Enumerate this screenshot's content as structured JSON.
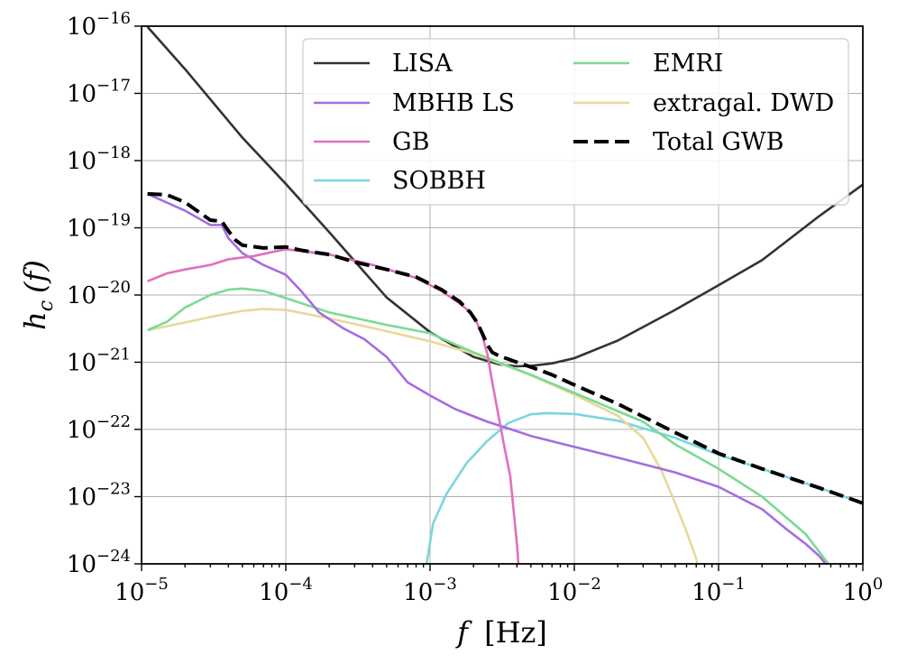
{
  "chart_data": {
    "type": "line",
    "title": "",
    "xlabel": {
      "var": "f",
      "unit": "[Hz]"
    },
    "ylabel": {
      "var": "h",
      "sub": "c",
      "arg": "(f)"
    },
    "x_scale": "log",
    "y_scale": "log",
    "xlim": [
      1e-05,
      1
    ],
    "ylim": [
      1e-24,
      1e-16
    ],
    "grid": true,
    "legend_position": "top-right",
    "x_ticks": [
      {
        "value": 1e-05,
        "base": "10",
        "exp": "−5"
      },
      {
        "value": 0.0001,
        "base": "10",
        "exp": "−4"
      },
      {
        "value": 0.001,
        "base": "10",
        "exp": "−3"
      },
      {
        "value": 0.01,
        "base": "10",
        "exp": "−2"
      },
      {
        "value": 0.1,
        "base": "10",
        "exp": "−1"
      },
      {
        "value": 1,
        "base": "10",
        "exp": "0"
      }
    ],
    "y_ticks": [
      {
        "value": 1e-24,
        "base": "10",
        "exp": "−24"
      },
      {
        "value": 1e-23,
        "base": "10",
        "exp": "−23"
      },
      {
        "value": 1e-22,
        "base": "10",
        "exp": "−22"
      },
      {
        "value": 1e-21,
        "base": "10",
        "exp": "−21"
      },
      {
        "value": 1e-20,
        "base": "10",
        "exp": "−20"
      },
      {
        "value": 1e-19,
        "base": "10",
        "exp": "−19"
      },
      {
        "value": 1e-18,
        "base": "10",
        "exp": "−18"
      },
      {
        "value": 1e-17,
        "base": "10",
        "exp": "−17"
      },
      {
        "value": 1e-16,
        "base": "10",
        "exp": "−16"
      }
    ],
    "series": [
      {
        "name": "LISA",
        "color": "#333333",
        "dash": "solid",
        "x": [
          1.1e-05,
          2e-05,
          5e-05,
          0.0001,
          0.0002,
          0.0005,
          0.001,
          0.002,
          0.003,
          0.004,
          0.005,
          0.007,
          0.01,
          0.02,
          0.05,
          0.1,
          0.2,
          0.5,
          1
        ],
        "y": [
          9.8e-17,
          2.3e-17,
          2.2e-18,
          4.5e-19,
          8.6e-20,
          9.2e-21,
          2.8e-21,
          1.2e-21,
          9.3e-22,
          8.7e-22,
          8.8e-22,
          9.6e-22,
          1.15e-21,
          2.1e-21,
          6e-21,
          1.4e-20,
          3.3e-20,
          1.5e-19,
          4.4e-19
        ]
      },
      {
        "name": "MBHB LS",
        "color": "#a56ce0",
        "dash": "solid",
        "x": [
          1.1e-05,
          2e-05,
          3e-05,
          3.6e-05,
          4e-05,
          5e-05,
          7e-05,
          0.0001,
          0.00013,
          0.00017,
          0.00025,
          0.00035,
          0.0005,
          0.0007,
          0.001,
          0.0015,
          0.0025,
          0.0035,
          0.005,
          0.01,
          0.02,
          0.05,
          0.1,
          0.2,
          0.3,
          0.4,
          0.5,
          0.6
        ],
        "y": [
          3.2e-19,
          1.8e-19,
          1.1e-19,
          1.1e-19,
          7e-20,
          4.2e-20,
          2.8e-20,
          2e-20,
          1.1e-20,
          5.5e-21,
          3.2e-21,
          2.2e-21,
          1.2e-21,
          5e-22,
          3.2e-22,
          2e-22,
          1.3e-22,
          1.03e-22,
          8e-23,
          5.5e-23,
          3.8e-23,
          2.3e-23,
          1.4e-23,
          6.5e-24,
          3.2e-24,
          2e-24,
          1.3e-24,
          8e-25
        ]
      },
      {
        "name": "GB",
        "color": "#e070c0",
        "dash": "solid",
        "x": [
          1.1e-05,
          1.5e-05,
          2e-05,
          3e-05,
          4e-05,
          6e-05,
          0.0001,
          0.0002,
          0.0004,
          0.0008,
          0.0012,
          0.0016,
          0.0019,
          0.0021,
          0.0023,
          0.0025,
          0.0027,
          0.003,
          0.0033,
          0.0036,
          0.0038,
          0.004,
          0.0042
        ],
        "y": [
          1.6e-20,
          2.1e-20,
          2.4e-20,
          2.8e-20,
          3.4e-20,
          3.8e-20,
          4.8e-20,
          4e-20,
          2.8e-20,
          1.8e-20,
          1.15e-20,
          7.5e-21,
          5.5e-21,
          4e-21,
          2.5e-21,
          1.3e-21,
          5e-22,
          1.5e-22,
          5e-23,
          2e-23,
          6e-24,
          2e-24,
          5e-25
        ]
      },
      {
        "name": "SOBBH",
        "color": "#7ad6e0",
        "dash": "solid",
        "x": [
          0.00093,
          0.00105,
          0.0013,
          0.0018,
          0.0025,
          0.0035,
          0.005,
          0.0065,
          0.01,
          0.02,
          0.05,
          0.1,
          0.2,
          0.5,
          1
        ],
        "y": [
          8e-25,
          4e-24,
          1.1e-23,
          3.2e-23,
          6.8e-23,
          1.25e-22,
          1.68e-22,
          1.75e-22,
          1.7e-22,
          1.35e-22,
          7.5e-23,
          4.2e-23,
          2.6e-23,
          1.35e-23,
          8e-24
        ]
      },
      {
        "name": "EMRI",
        "color": "#7adb92",
        "dash": "solid",
        "x": [
          1.1e-05,
          1.5e-05,
          2e-05,
          3e-05,
          4e-05,
          5e-05,
          7e-05,
          0.0001,
          0.0002,
          0.0005,
          0.001,
          0.002,
          0.005,
          0.01,
          0.03,
          0.05,
          0.1,
          0.2,
          0.4,
          0.6,
          0.7
        ],
        "y": [
          3e-21,
          4e-21,
          6.5e-21,
          1e-20,
          1.2e-20,
          1.25e-20,
          1.15e-20,
          9e-21,
          5.5e-21,
          3.6e-21,
          2.7e-21,
          1.4e-21,
          6.5e-22,
          3.5e-22,
          1.3e-22,
          6e-23,
          2.6e-23,
          1e-23,
          2.8e-24,
          9e-25,
          6e-25
        ]
      },
      {
        "name": "extragal. DWD",
        "color": "#e8d89a",
        "dash": "solid",
        "x": [
          1.1e-05,
          2e-05,
          3e-05,
          5e-05,
          7e-05,
          0.0001,
          0.0002,
          0.0005,
          0.001,
          0.002,
          0.005,
          0.01,
          0.02,
          0.03,
          0.04,
          0.05,
          0.06,
          0.07,
          0.075
        ],
        "y": [
          3e-21,
          3.9e-21,
          4.7e-21,
          5.8e-21,
          6.2e-21,
          6e-21,
          4.5e-21,
          2.9e-21,
          2.05e-21,
          1.35e-21,
          6.4e-22,
          3.3e-22,
          1.6e-22,
          7.5e-23,
          2.5e-23,
          8e-24,
          3e-24,
          1.2e-24,
          6e-25
        ]
      },
      {
        "name": "Total GWB",
        "color": "#000000",
        "dash": "dashed",
        "x": [
          1.1e-05,
          1.5e-05,
          2e-05,
          3e-05,
          3.6e-05,
          4e-05,
          4.5e-05,
          5e-05,
          7e-05,
          0.0001,
          0.00013,
          0.0002,
          0.0003,
          0.0005,
          0.0008,
          0.0012,
          0.0016,
          0.0019,
          0.0021,
          0.0023,
          0.0025,
          0.0027,
          0.003,
          0.004,
          0.005,
          0.007,
          0.01,
          0.02,
          0.05,
          0.1,
          0.2,
          0.5,
          1
        ],
        "y": [
          3.2e-19,
          3.1e-19,
          2.4e-19,
          1.3e-19,
          1.25e-19,
          9e-20,
          6.5e-20,
          5.5e-20,
          5e-20,
          5.2e-20,
          4.6e-20,
          4e-20,
          3.1e-20,
          2.4e-20,
          1.85e-20,
          1.2e-20,
          8e-21,
          5.5e-21,
          4e-21,
          2.7e-21,
          1.8e-21,
          1.4e-21,
          1.25e-21,
          1e-21,
          8.5e-22,
          6.5e-22,
          4.6e-22,
          2.4e-22,
          9e-23,
          4.4e-23,
          2.6e-23,
          1.35e-23,
          8e-24
        ]
      }
    ]
  }
}
